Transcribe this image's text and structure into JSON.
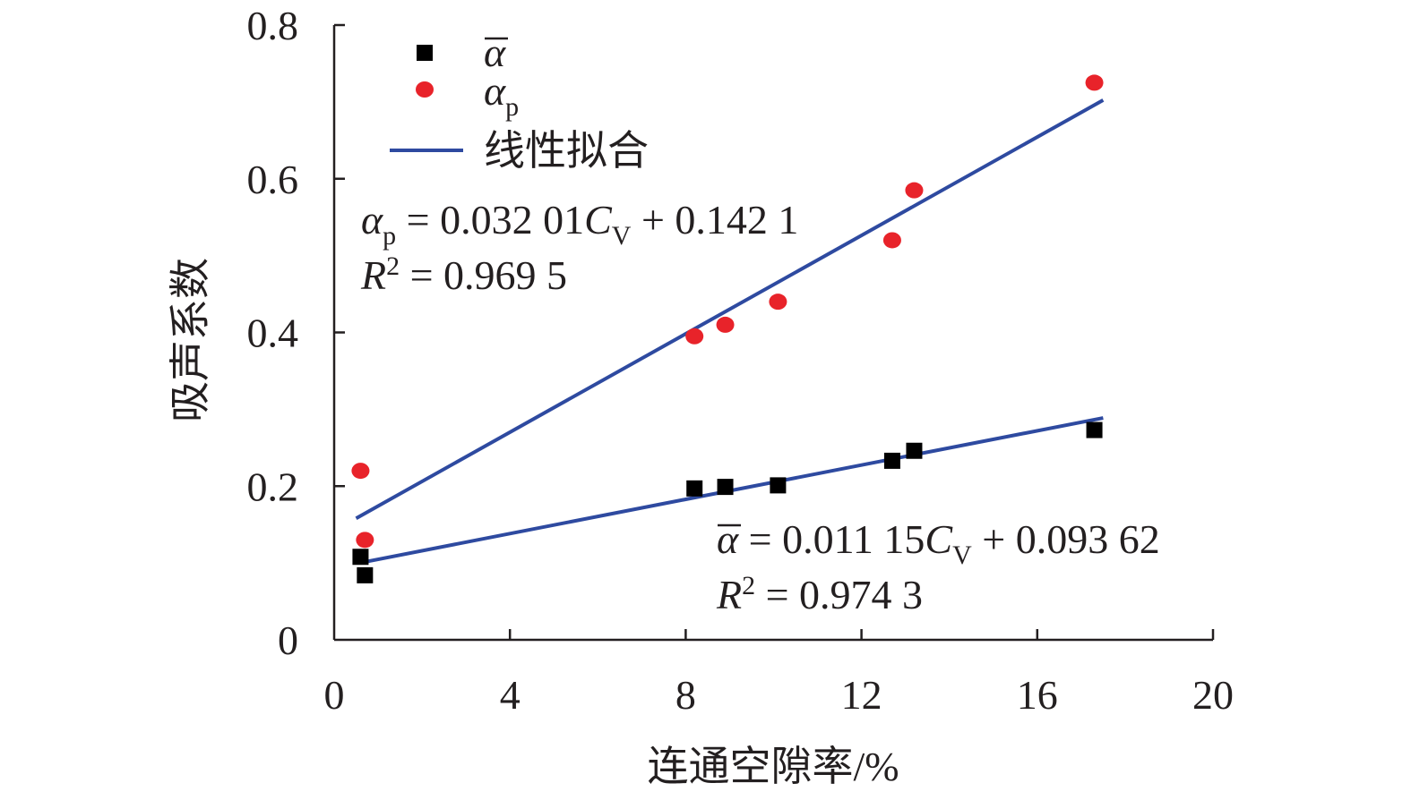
{
  "chart_data": {
    "type": "scatter",
    "xlabel": "连通空隙率/%",
    "ylabel": "吸声系数",
    "xlim": [
      0,
      20
    ],
    "ylim": [
      0,
      0.8
    ],
    "xticks": [
      "0",
      "4",
      "8",
      "12",
      "16",
      "20"
    ],
    "yticks": [
      "0",
      "0.2",
      "0.4",
      "0.6",
      "0.8"
    ],
    "grid": false,
    "legend_position": "top-left",
    "series": [
      {
        "name": "α̅",
        "marker": "square",
        "color": "#000000",
        "x": [
          0.6,
          0.7,
          8.2,
          8.9,
          10.1,
          12.7,
          13.2,
          17.3
        ],
        "y": [
          0.108,
          0.084,
          0.197,
          0.199,
          0.201,
          0.233,
          0.246,
          0.273
        ]
      },
      {
        "name": "αp",
        "marker": "circle",
        "color": "#e8232a",
        "x": [
          0.6,
          0.7,
          8.2,
          8.9,
          10.1,
          12.7,
          13.2,
          17.3
        ],
        "y": [
          0.22,
          0.13,
          0.395,
          0.41,
          0.44,
          0.52,
          0.585,
          0.725
        ]
      }
    ],
    "fits": [
      {
        "name": "线性拟合",
        "color": "#2e4aa0",
        "slope": 0.03201,
        "intercept": 0.1421,
        "x_range": [
          0.5,
          17.5
        ]
      },
      {
        "name": "线性拟合",
        "color": "#2e4aa0",
        "slope": 0.01115,
        "intercept": 0.09362,
        "x_range": [
          0.7,
          17.5
        ]
      }
    ],
    "legend": {
      "alpha_bar": "α",
      "alpha_p_main": "α",
      "alpha_p_sub": "p",
      "fit": "线性拟合"
    },
    "annotations": {
      "ap_eq": {
        "lhs": "α",
        "lhs_sub": "p",
        "mid": " = 0.032 01",
        "var": "C",
        "var_sub": "V",
        "tail": " + 0.142 1"
      },
      "ap_r2": {
        "r": "R",
        "sup": "2",
        "tail": " = 0.969 5"
      },
      "ab_eq": {
        "lhs": "α",
        "mid": " = 0.011 15",
        "var": "C",
        "var_sub": "V",
        "tail": " + 0.093 62"
      },
      "ab_r2": {
        "r": "R",
        "sup": "2",
        "tail": " = 0.974 3"
      }
    }
  }
}
